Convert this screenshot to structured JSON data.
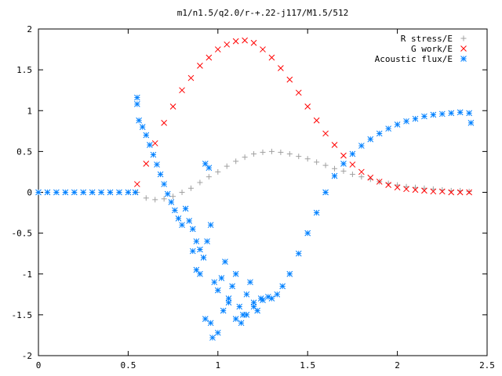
{
  "chart_data": {
    "type": "scatter",
    "title": "m1/n1.5/q2.0/r-+.22-j117/M1.5/512",
    "xlabel": "",
    "ylabel": "",
    "xlim": [
      0,
      2.5
    ],
    "ylim": [
      -2,
      2
    ],
    "x_ticks": [
      "0",
      "0.5",
      "1",
      "1.5",
      "2",
      "2.5"
    ],
    "y_ticks": [
      "2",
      "1.5",
      "1",
      "0.5",
      "0",
      "-0.5",
      "-1",
      "-1.5",
      "-2"
    ],
    "grid": false,
    "legend_position": "top-right",
    "series": [
      {
        "name": "R stress/E",
        "marker": "plus",
        "color": "#a0a0a0",
        "x": [
          0.55,
          0.6,
          0.65,
          0.7,
          0.75,
          0.8,
          0.85,
          0.9,
          0.95,
          1.0,
          1.05,
          1.1,
          1.15,
          1.2,
          1.25,
          1.3,
          1.35,
          1.4,
          1.45,
          1.5,
          1.55,
          1.6,
          1.65,
          1.7,
          1.75,
          1.8,
          1.85,
          1.9,
          1.95,
          2.0,
          2.05,
          2.1,
          2.15,
          2.2,
          2.25,
          2.3,
          2.35,
          2.4
        ],
        "y": [
          0.0,
          -0.07,
          -0.09,
          -0.08,
          -0.05,
          0.0,
          0.05,
          0.12,
          0.19,
          0.25,
          0.32,
          0.38,
          0.43,
          0.47,
          0.49,
          0.5,
          0.49,
          0.47,
          0.44,
          0.41,
          0.37,
          0.33,
          0.29,
          0.26,
          0.22,
          0.19,
          0.16,
          0.13,
          0.11,
          0.09,
          0.07,
          0.06,
          0.05,
          0.04,
          0.03,
          0.02,
          0.02,
          0.01
        ]
      },
      {
        "name": "G work/E",
        "marker": "cross",
        "color": "#ff0000",
        "x": [
          0.55,
          0.6,
          0.65,
          0.7,
          0.75,
          0.8,
          0.85,
          0.9,
          0.95,
          1.0,
          1.05,
          1.1,
          1.15,
          1.2,
          1.25,
          1.3,
          1.35,
          1.4,
          1.45,
          1.5,
          1.55,
          1.6,
          1.65,
          1.7,
          1.75,
          1.8,
          1.85,
          1.9,
          1.95,
          2.0,
          2.05,
          2.1,
          2.15,
          2.2,
          2.25,
          2.3,
          2.35,
          2.4
        ],
        "y": [
          0.1,
          0.35,
          0.6,
          0.85,
          1.05,
          1.25,
          1.4,
          1.55,
          1.65,
          1.75,
          1.81,
          1.85,
          1.86,
          1.83,
          1.75,
          1.65,
          1.52,
          1.38,
          1.22,
          1.05,
          0.88,
          0.72,
          0.58,
          0.45,
          0.34,
          0.25,
          0.18,
          0.13,
          0.09,
          0.06,
          0.04,
          0.03,
          0.02,
          0.01,
          0.01,
          0.0,
          0.0,
          0.0
        ]
      },
      {
        "name": "Acoustic flux/E",
        "marker": "star",
        "color": "#0080ff",
        "x": [
          0.0,
          0.05,
          0.1,
          0.15,
          0.2,
          0.25,
          0.3,
          0.35,
          0.4,
          0.45,
          0.5,
          0.54,
          0.55,
          0.55,
          0.56,
          0.58,
          0.6,
          0.62,
          0.64,
          0.66,
          0.68,
          0.7,
          0.72,
          0.74,
          0.76,
          0.78,
          0.8,
          0.82,
          0.84,
          0.86,
          0.88,
          0.9,
          0.93,
          0.95,
          0.86,
          0.88,
          0.9,
          0.92,
          0.94,
          0.96,
          0.98,
          1.0,
          1.02,
          1.04,
          1.06,
          1.08,
          1.1,
          1.12,
          1.14,
          1.16,
          1.18,
          1.2,
          1.22,
          1.24,
          0.93,
          0.96,
          0.97,
          1.0,
          1.03,
          1.06,
          1.1,
          1.13,
          1.16,
          1.2,
          1.25,
          1.28,
          1.3,
          1.33,
          1.36,
          1.4,
          1.45,
          1.5,
          1.55,
          1.6,
          1.65,
          1.7,
          1.75,
          1.8,
          1.85,
          1.9,
          1.95,
          2.0,
          2.05,
          2.1,
          2.15,
          2.2,
          2.25,
          2.3,
          2.35,
          2.4,
          2.41
        ],
        "y": [
          0,
          0,
          0,
          0,
          0,
          0,
          0,
          0,
          0,
          0,
          0,
          0.0,
          1.16,
          1.08,
          0.88,
          0.8,
          0.7,
          0.58,
          0.46,
          0.34,
          0.22,
          0.1,
          -0.02,
          -0.12,
          -0.22,
          -0.32,
          -0.4,
          -0.2,
          -0.35,
          -0.45,
          -0.6,
          -0.7,
          0.35,
          0.3,
          -0.72,
          -0.95,
          -1.0,
          -0.8,
          -0.6,
          -0.4,
          -1.1,
          -1.2,
          -1.05,
          -0.85,
          -1.3,
          -1.15,
          -1.0,
          -1.4,
          -1.5,
          -1.25,
          -1.1,
          -1.35,
          -1.45,
          -1.3,
          -1.55,
          -1.6,
          -1.78,
          -1.72,
          -1.45,
          -1.35,
          -1.55,
          -1.6,
          -1.5,
          -1.4,
          -1.32,
          -1.28,
          -1.3,
          -1.25,
          -1.15,
          -1.0,
          -0.75,
          -0.5,
          -0.25,
          0.0,
          0.2,
          0.35,
          0.47,
          0.57,
          0.65,
          0.72,
          0.78,
          0.83,
          0.87,
          0.9,
          0.93,
          0.95,
          0.96,
          0.97,
          0.98,
          0.97,
          0.85
        ]
      }
    ]
  }
}
